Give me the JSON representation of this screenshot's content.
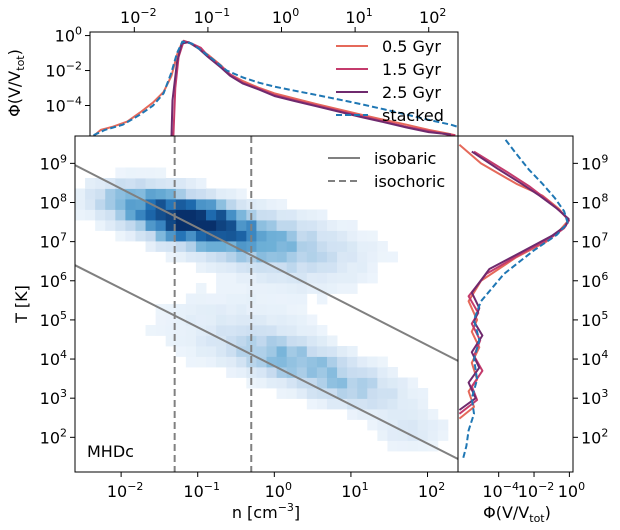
{
  "chart_data": [
    {
      "id": "top",
      "type": "line",
      "xscale": "log",
      "yscale": "log",
      "xlim": [
        0.0025,
        250
      ],
      "ylim": [
        1.8e-06,
        1.6
      ],
      "xticks": [
        {
          "v": 0.01,
          "label": "10",
          "exp": "−2"
        },
        {
          "v": 0.1,
          "label": "10",
          "exp": "−1"
        },
        {
          "v": 1,
          "label": "10",
          "exp": "0"
        },
        {
          "v": 10,
          "label": "10",
          "exp": "1"
        },
        {
          "v": 100,
          "label": "10",
          "exp": "2"
        }
      ],
      "yticks": [
        {
          "v": 1,
          "label": "10",
          "exp": "0"
        },
        {
          "v": 0.01,
          "label": "10",
          "exp": "−2"
        },
        {
          "v": 0.0001,
          "label": "10",
          "exp": "−4"
        }
      ],
      "ylabel": {
        "main": "Φ(V/V",
        "sub": "tot",
        "tail": ")"
      },
      "legend": [
        {
          "label": "0.5 Gyr",
          "color": "#e5695a",
          "dash": "none"
        },
        {
          "label": "1.5 Gyr",
          "color": "#c43b6c",
          "dash": "none"
        },
        {
          "label": "2.5 Gyr",
          "color": "#6f2a6e",
          "dash": "none"
        },
        {
          "label": "stacked",
          "color": "#1f77b4",
          "dash": "6,3"
        }
      ],
      "series": [
        {
          "name": "0.5 Gyr",
          "color": "#e5695a",
          "dash": "none",
          "points": [
            [
              0.0028,
              1.8e-06
            ],
            [
              0.0035,
              4e-06
            ],
            [
              0.005,
              6e-06
            ],
            [
              0.008,
              1.2e-05
            ],
            [
              0.012,
              4e-05
            ],
            [
              0.018,
              0.00015
            ],
            [
              0.025,
              0.0006
            ],
            [
              0.032,
              0.005
            ],
            [
              0.038,
              0.08
            ],
            [
              0.045,
              0.45
            ],
            [
              0.055,
              0.4
            ],
            [
              0.07,
              0.22
            ],
            [
              0.1,
              0.08
            ],
            [
              0.15,
              0.02
            ],
            [
              0.2,
              0.006
            ],
            [
              0.3,
              0.0025
            ],
            [
              0.5,
              0.001
            ],
            [
              0.8,
              0.0005
            ],
            [
              1.5,
              0.00025
            ],
            [
              3,
              0.00012
            ],
            [
              6,
              6e-05
            ],
            [
              12,
              3e-05
            ],
            [
              25,
              1.5e-05
            ],
            [
              50,
              8e-06
            ],
            [
              100,
              4e-06
            ],
            [
              180,
              2.5e-06
            ],
            [
              230,
              2e-06
            ]
          ]
        },
        {
          "name": "1.5 Gyr",
          "color": "#c43b6c",
          "dash": "none",
          "points": [
            [
              0.034,
              1.8e-06
            ],
            [
              0.036,
              0.001
            ],
            [
              0.04,
              0.06
            ],
            [
              0.047,
              0.5
            ],
            [
              0.06,
              0.35
            ],
            [
              0.08,
              0.2
            ],
            [
              0.1,
              0.07
            ],
            [
              0.15,
              0.018
            ],
            [
              0.2,
              0.006
            ],
            [
              0.3,
              0.002
            ],
            [
              0.5,
              0.0009
            ],
            [
              0.8,
              0.0004
            ],
            [
              1.5,
              0.0002
            ],
            [
              3,
              0.0001
            ],
            [
              6,
              5e-05
            ],
            [
              12,
              2.5e-05
            ],
            [
              25,
              1.2e-05
            ],
            [
              50,
              6e-06
            ],
            [
              100,
              3.5e-06
            ],
            [
              180,
              2.2e-06
            ],
            [
              230,
              2e-06
            ]
          ]
        },
        {
          "name": "2.5 Gyr",
          "color": "#6f2a6e",
          "dash": "none",
          "points": [
            [
              0.032,
              1.8e-06
            ],
            [
              0.033,
              0.0002
            ],
            [
              0.038,
              0.03
            ],
            [
              0.044,
              0.35
            ],
            [
              0.055,
              0.42
            ],
            [
              0.075,
              0.18
            ],
            [
              0.1,
              0.06
            ],
            [
              0.15,
              0.015
            ],
            [
              0.2,
              0.005
            ],
            [
              0.3,
              0.0018
            ],
            [
              0.5,
              0.0008
            ],
            [
              0.8,
              0.00035
            ],
            [
              1.5,
              0.00018
            ],
            [
              3,
              9e-05
            ],
            [
              6,
              4.5e-05
            ],
            [
              12,
              2.2e-05
            ],
            [
              25,
              1.1e-05
            ],
            [
              50,
              5.5e-06
            ],
            [
              100,
              3e-06
            ],
            [
              200,
              2.2e-06
            ]
          ]
        },
        {
          "name": "stacked",
          "color": "#1f77b4",
          "dash": "6,3",
          "points": [
            [
              0.0028,
              2e-06
            ],
            [
              0.004,
              4e-06
            ],
            [
              0.007,
              8e-06
            ],
            [
              0.012,
              3e-05
            ],
            [
              0.018,
              0.0001
            ],
            [
              0.025,
              0.0005
            ],
            [
              0.032,
              0.008
            ],
            [
              0.038,
              0.1
            ],
            [
              0.045,
              0.45
            ],
            [
              0.06,
              0.35
            ],
            [
              0.08,
              0.15
            ],
            [
              0.12,
              0.04
            ],
            [
              0.18,
              0.01
            ],
            [
              0.3,
              0.004
            ],
            [
              0.5,
              0.002
            ],
            [
              0.8,
              0.0012
            ],
            [
              1.5,
              0.0007
            ],
            [
              3,
              0.0004
            ],
            [
              6,
              0.00022
            ],
            [
              12,
              0.00012
            ],
            [
              25,
              6e-05
            ],
            [
              50,
              3e-05
            ],
            [
              100,
              1.5e-05
            ],
            [
              200,
              8e-06
            ],
            [
              250,
              6e-06
            ]
          ]
        }
      ]
    },
    {
      "id": "main",
      "type": "heatmap",
      "xscale": "log",
      "yscale": "log",
      "xlim": [
        0.0025,
        250
      ],
      "ylim": [
        13,
        5000000000
      ],
      "xlabel": {
        "main": "n [cm",
        "sup": "−3",
        "tail": "]"
      },
      "ylabel": "T [K]",
      "xticks": [
        {
          "v": 0.01,
          "label": "10",
          "exp": "−2"
        },
        {
          "v": 0.1,
          "label": "10",
          "exp": "−1"
        },
        {
          "v": 1,
          "label": "10",
          "exp": "0"
        },
        {
          "v": 10,
          "label": "10",
          "exp": "1"
        },
        {
          "v": 100,
          "label": "10",
          "exp": "2"
        }
      ],
      "yticks": [
        {
          "v": 100,
          "label": "10",
          "exp": "2"
        },
        {
          "v": 1000,
          "label": "10",
          "exp": "3"
        },
        {
          "v": 10000,
          "label": "10",
          "exp": "4"
        },
        {
          "v": 100000,
          "label": "10",
          "exp": "5"
        },
        {
          "v": 1000000,
          "label": "10",
          "exp": "6"
        },
        {
          "v": 10000000,
          "label": "10",
          "exp": "7"
        },
        {
          "v": 100000000,
          "label": "10",
          "exp": "8"
        },
        {
          "v": 1000000000,
          "label": "10",
          "exp": "9"
        }
      ],
      "annotation": "MHDc",
      "legend": [
        {
          "label": "isobaric",
          "color": "#808080",
          "dash": "none"
        },
        {
          "label": "isochoric",
          "color": "#808080",
          "dash": "7,4"
        }
      ],
      "isobaric_lines": [
        {
          "points": [
            [
              0.0025,
              900000000
            ],
            [
              250,
              9000
            ]
          ]
        },
        {
          "points": [
            [
              0.0025,
              2500000
            ],
            [
              250,
              28
            ]
          ]
        }
      ],
      "isochoric_lines": [
        0.05,
        0.5
      ],
      "blobs": [
        {
          "logn": -1.1,
          "logT": 7.55,
          "sn": 0.4,
          "sT": 0.3,
          "rot": -0.45,
          "amp": 1.0
        },
        {
          "logn": -0.5,
          "logT": 7.2,
          "sn": 0.55,
          "sT": 0.35,
          "rot": -0.45,
          "amp": 0.45
        },
        {
          "logn": -1.7,
          "logT": 8.0,
          "sn": 0.4,
          "sT": 0.3,
          "rot": -0.3,
          "amp": 0.4
        },
        {
          "logn": 0.3,
          "logT": 6.7,
          "sn": 0.6,
          "sT": 0.5,
          "rot": -0.4,
          "amp": 0.12
        },
        {
          "logn": 0.2,
          "logT": 4.0,
          "sn": 0.55,
          "sT": 0.3,
          "rot": -0.6,
          "amp": 0.28
        },
        {
          "logn": 1.0,
          "logT": 3.3,
          "sn": 0.5,
          "sT": 0.3,
          "rot": -0.6,
          "amp": 0.18
        },
        {
          "logn": -0.5,
          "logT": 4.8,
          "sn": 0.7,
          "sT": 0.6,
          "rot": -0.3,
          "amp": 0.05
        },
        {
          "logn": 1.8,
          "logT": 2.2,
          "sn": 0.3,
          "sT": 0.3,
          "rot": -0.4,
          "amp": 0.06
        }
      ]
    },
    {
      "id": "right",
      "type": "line",
      "xscale": "log",
      "yscale": "log",
      "xlim": [
        5e-07,
        1.6
      ],
      "ylim": [
        13,
        5000000000
      ],
      "xticks": [
        {
          "v": 0.0001,
          "label": "10",
          "exp": "−4"
        },
        {
          "v": 0.01,
          "label": "10",
          "exp": "−2"
        },
        {
          "v": 1,
          "label": "10",
          "exp": "0"
        }
      ],
      "yticks": [
        {
          "v": 100,
          "label": "10",
          "exp": "2"
        },
        {
          "v": 1000,
          "label": "10",
          "exp": "3"
        },
        {
          "v": 10000,
          "label": "10",
          "exp": "4"
        },
        {
          "v": 100000,
          "label": "10",
          "exp": "5"
        },
        {
          "v": 1000000,
          "label": "10",
          "exp": "6"
        },
        {
          "v": 10000000,
          "label": "10",
          "exp": "7"
        },
        {
          "v": 100000000,
          "label": "10",
          "exp": "8"
        },
        {
          "v": 1000000000,
          "label": "10",
          "exp": "9"
        }
      ],
      "xlabel": {
        "main": "Φ(V/V",
        "sub": "tot",
        "tail": ")"
      },
      "series": [
        {
          "name": "0.5 Gyr",
          "color": "#e5695a",
          "dash": "none",
          "points": [
            [
              6e-07,
              300
            ],
            [
              4e-06,
              600
            ],
            [
              2e-06,
              1500
            ],
            [
              6e-06,
              3000
            ],
            [
              3e-06,
              8000
            ],
            [
              8e-06,
              20000
            ],
            [
              3e-06,
              50000
            ],
            [
              6e-06,
              100000
            ],
            [
              2e-06,
              300000
            ],
            [
              1e-05,
              1000000
            ],
            [
              0.001,
              4000000
            ],
            [
              0.05,
              10000000
            ],
            [
              0.3,
              20000000
            ],
            [
              0.9,
              35000000
            ],
            [
              0.25,
              70000000
            ],
            [
              0.03,
              150000000
            ],
            [
              0.001,
              300000000
            ],
            [
              1e-05,
              1000000000
            ],
            [
              6e-07,
              3000000000
            ]
          ]
        },
        {
          "name": "1.5 Gyr",
          "color": "#c43b6c",
          "dash": "none",
          "points": [
            [
              6e-07,
              400
            ],
            [
              6e-06,
              900
            ],
            [
              3e-06,
              2000
            ],
            [
              1.2e-05,
              5000
            ],
            [
              4e-06,
              12000
            ],
            [
              9e-06,
              30000
            ],
            [
              3e-06,
              80000
            ],
            [
              7e-06,
              150000
            ],
            [
              2e-06,
              400000
            ],
            [
              2e-05,
              1500000
            ],
            [
              0.002,
              5000000
            ],
            [
              0.08,
              12000000
            ],
            [
              0.5,
              22000000
            ],
            [
              0.95,
              35000000
            ],
            [
              0.3,
              60000000
            ],
            [
              0.05,
              120000000
            ],
            [
              0.006,
              250000000
            ],
            [
              0.0003,
              600000000
            ],
            [
              4e-06,
              2000000000
            ]
          ]
        },
        {
          "name": "2.5 Gyr",
          "color": "#6f2a6e",
          "dash": "none",
          "points": [
            [
              6e-07,
              500
            ],
            [
              5e-06,
              1000
            ],
            [
              2e-06,
              2500
            ],
            [
              8e-06,
              6000
            ],
            [
              3e-06,
              15000
            ],
            [
              1.2e-05,
              40000
            ],
            [
              4e-06,
              90000
            ],
            [
              8e-06,
              200000
            ],
            [
              3e-06,
              500000
            ],
            [
              3e-05,
              2000000
            ],
            [
              0.003,
              6000000
            ],
            [
              0.1,
              14000000
            ],
            [
              0.6,
              25000000
            ],
            [
              0.9,
              38000000
            ],
            [
              0.2,
              70000000
            ],
            [
              0.02,
              150000000
            ],
            [
              0.002,
              300000000
            ],
            [
              0.0001,
              700000000
            ],
            [
              3e-06,
              2000000000
            ]
          ]
        },
        {
          "name": "stacked",
          "color": "#1f77b4",
          "dash": "6,3",
          "points": [
            [
              1e-06,
              30
            ],
            [
              1.5e-06,
              60
            ],
            [
              2e-06,
              150
            ],
            [
              4e-06,
              400
            ],
            [
              3e-06,
              1000
            ],
            [
              6e-06,
              3000
            ],
            [
              4e-06,
              10000
            ],
            [
              8e-06,
              30000
            ],
            [
              4e-06,
              100000
            ],
            [
              1e-05,
              300000
            ],
            [
              0.0002,
              1500000
            ],
            [
              0.01,
              6000000
            ],
            [
              0.2,
              15000000
            ],
            [
              0.8,
              30000000
            ],
            [
              0.5,
              60000000
            ],
            [
              0.15,
              130000000
            ],
            [
              0.03,
              300000000
            ],
            [
              0.005,
              700000000
            ],
            [
              0.0008,
              2000000000
            ],
            [
              0.0002,
              4500000000
            ]
          ]
        }
      ]
    }
  ]
}
